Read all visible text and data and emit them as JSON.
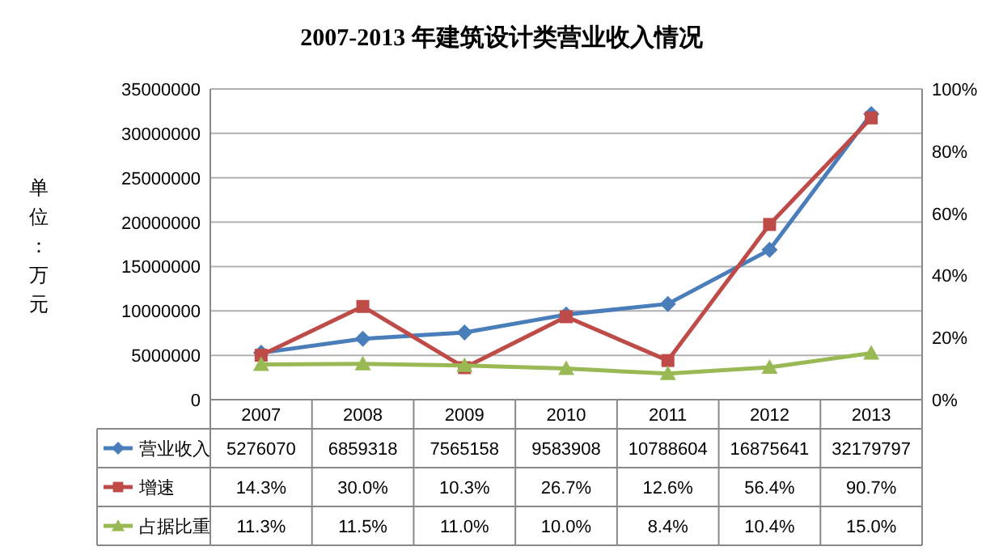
{
  "chart_data": {
    "type": "line",
    "title": "2007-2013 年建筑设计类营业收入情况",
    "ylabel": "单位：万元",
    "categories": [
      "2007",
      "2008",
      "2009",
      "2010",
      "2011",
      "2012",
      "2013"
    ],
    "ylim": [
      0,
      35000000
    ],
    "yticks": [
      0,
      5000000,
      10000000,
      15000000,
      20000000,
      25000000,
      30000000,
      35000000
    ],
    "y2lim": [
      0,
      100
    ],
    "y2ticks": [
      {
        "value": 0,
        "label": "0%"
      },
      {
        "value": 20,
        "label": "20%"
      },
      {
        "value": 40,
        "label": "40%"
      },
      {
        "value": 60,
        "label": "60%"
      },
      {
        "value": 80,
        "label": "80%"
      },
      {
        "value": 100,
        "label": "100%"
      }
    ],
    "grid": "y",
    "legend": "bottom",
    "series": [
      {
        "name": "营业收入",
        "color": "#4a7ebb",
        "marker": "diamond",
        "values": [
          5276070,
          6859318,
          7565158,
          9583908,
          10788604,
          16875641,
          32179797
        ],
        "value_labels": [
          "5276070",
          "6859318",
          "7565158",
          "9583908",
          "10788604",
          "16875641",
          "32179797"
        ]
      },
      {
        "name": "增速",
        "color": "#be4b48",
        "marker": "square",
        "axis": "y2",
        "values": [
          14.3,
          30.0,
          10.3,
          26.7,
          12.6,
          56.4,
          90.7
        ],
        "value_labels": [
          "14.3%",
          "30.0%",
          "10.3%",
          "26.7%",
          "12.6%",
          "56.4%",
          "90.7%"
        ]
      },
      {
        "name": "占据比重",
        "color": "#98b954",
        "marker": "triangle",
        "axis": "y2",
        "values": [
          11.3,
          11.5,
          11.0,
          10.0,
          8.4,
          10.4,
          15.0
        ],
        "value_labels": [
          "11.3%",
          "11.5%",
          "11.0%",
          "10.0%",
          "8.4%",
          "10.4%",
          "15.0%"
        ]
      }
    ]
  }
}
